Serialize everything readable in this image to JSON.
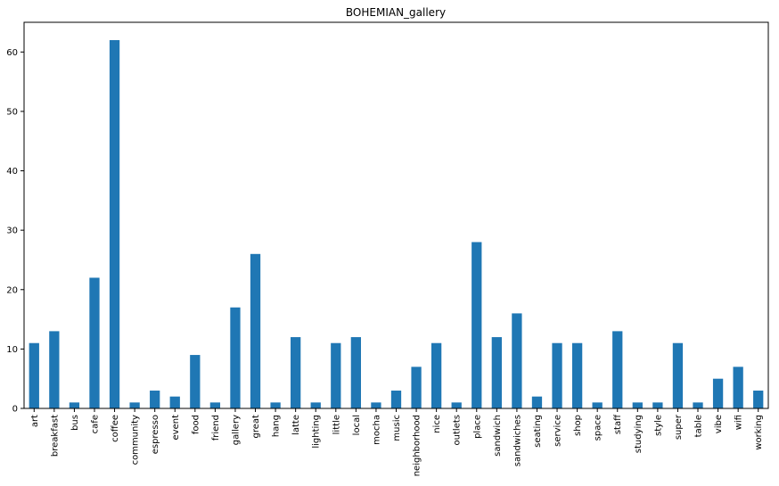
{
  "chart_data": {
    "type": "bar",
    "title": "BOHEMIAN_gallery",
    "xlabel": "",
    "ylabel": "",
    "categories": [
      "art",
      "breakfast",
      "bus",
      "cafe",
      "coffee",
      "community",
      "espresso",
      "event",
      "food",
      "friend",
      "gallery",
      "great",
      "hang",
      "latte",
      "lighting",
      "little",
      "local",
      "mocha",
      "music",
      "neighborhood",
      "nice",
      "outlets",
      "place",
      "sandwich",
      "sandwiches",
      "seating",
      "service",
      "shop",
      "space",
      "staff",
      "studying",
      "style",
      "super",
      "table",
      "vibe",
      "wifi",
      "working"
    ],
    "values": [
      11,
      13,
      1,
      22,
      62,
      1,
      3,
      2,
      9,
      1,
      17,
      26,
      1,
      12,
      1,
      11,
      12,
      1,
      3,
      7,
      11,
      1,
      28,
      12,
      16,
      2,
      11,
      11,
      1,
      13,
      1,
      1,
      11,
      1,
      5,
      7,
      3
    ],
    "ylim": [
      0,
      65
    ],
    "yticks": [
      0,
      10,
      20,
      30,
      40,
      50,
      60
    ],
    "grid": false,
    "legend": "none",
    "bar_color": "#1f77b4",
    "axis_color": "#000000"
  }
}
